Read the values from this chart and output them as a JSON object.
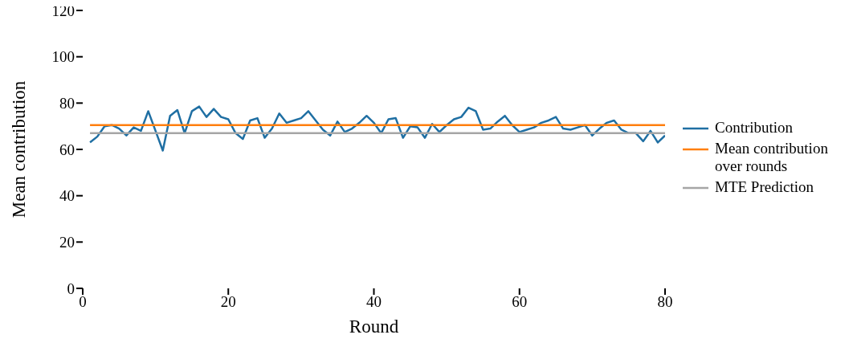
{
  "chart_data": {
    "type": "line",
    "xlabel": "Round",
    "ylabel": "Mean contribution",
    "xlim": [
      0,
      80
    ],
    "xticks": [
      0,
      20,
      40,
      60,
      80
    ],
    "ylim": [
      0,
      120
    ],
    "yticks": [
      0,
      20,
      40,
      60,
      80,
      100,
      120
    ],
    "legend": "right",
    "marker": "none",
    "line_style": "solid",
    "series": [
      {
        "name": "Contribution",
        "color": "#1f6fa3",
        "x": [
          1,
          2,
          3,
          4,
          5,
          6,
          7,
          8,
          9,
          10,
          11,
          12,
          13,
          14,
          15,
          16,
          17,
          18,
          19,
          20,
          21,
          22,
          23,
          24,
          25,
          26,
          27,
          28,
          29,
          30,
          31,
          32,
          33,
          34,
          35,
          36,
          37,
          38,
          39,
          40,
          41,
          42,
          43,
          44,
          45,
          46,
          47,
          48,
          49,
          50,
          51,
          52,
          53,
          54,
          55,
          56,
          57,
          58,
          59,
          60,
          61,
          62,
          63,
          64,
          65,
          66,
          67,
          68,
          69,
          70,
          71,
          72,
          73,
          74,
          75,
          76,
          77,
          78,
          79,
          80
        ],
        "values": [
          63,
          65.5,
          70,
          70.5,
          69,
          66,
          69.5,
          68,
          76.5,
          68,
          59.5,
          74.5,
          77,
          67,
          76.5,
          78.5,
          74,
          77.5,
          74,
          73,
          67,
          64.5,
          72.5,
          73.5,
          65,
          69,
          75.5,
          71.5,
          72.5,
          73.5,
          76.5,
          72.5,
          68.5,
          66,
          72,
          67.5,
          69,
          71.5,
          74.5,
          71.5,
          67,
          73,
          73.5,
          65,
          70,
          69.5,
          65,
          71,
          67.5,
          70.5,
          73,
          74,
          78,
          76.5,
          68.5,
          69,
          72,
          74.5,
          70.5,
          67.5,
          68.5,
          69.5,
          71.5,
          72.5,
          74,
          69,
          68.5,
          69.5,
          70.5,
          66,
          69,
          71.5,
          72.5,
          68.5,
          67,
          67,
          63.5,
          68,
          63,
          66
        ]
      },
      {
        "name": "Mean contribution over rounds",
        "color": "#ff7f0e",
        "x": [
          1,
          80
        ],
        "values": [
          70.5,
          70.5
        ]
      },
      {
        "name": "MTE Prediction",
        "color": "#a6a6a6",
        "x": [
          1,
          80
        ],
        "values": [
          67,
          67
        ]
      }
    ]
  }
}
